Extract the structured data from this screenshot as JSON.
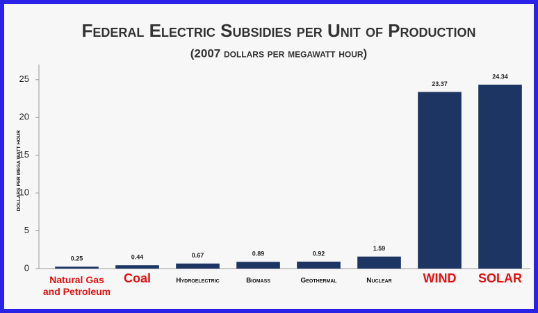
{
  "chart_data": {
    "type": "bar",
    "title": "Federal Electric Subsidies per Unit of Production",
    "subtitle": "(2007 dollars per megawatt hour)",
    "y_label": "Dollars per mega watt hour",
    "categories": [
      "Natural Gas and Petroleum",
      "Coal",
      "Hydroelectric",
      "Biomass",
      "Geothermal",
      "Nuclear",
      "WIND",
      "SOLAR"
    ],
    "category_label_colors": [
      "#e01010",
      "#e01010",
      "#111111",
      "#111111",
      "#111111",
      "#111111",
      "#e01010",
      "#e01010"
    ],
    "values": [
      0.25,
      0.44,
      0.67,
      0.89,
      0.92,
      1.59,
      23.37,
      24.34
    ],
    "color": "#1c3563",
    "ylim": [
      0,
      27
    ],
    "yticks": [
      0,
      5,
      10,
      15,
      20,
      25
    ],
    "grid": false
  }
}
